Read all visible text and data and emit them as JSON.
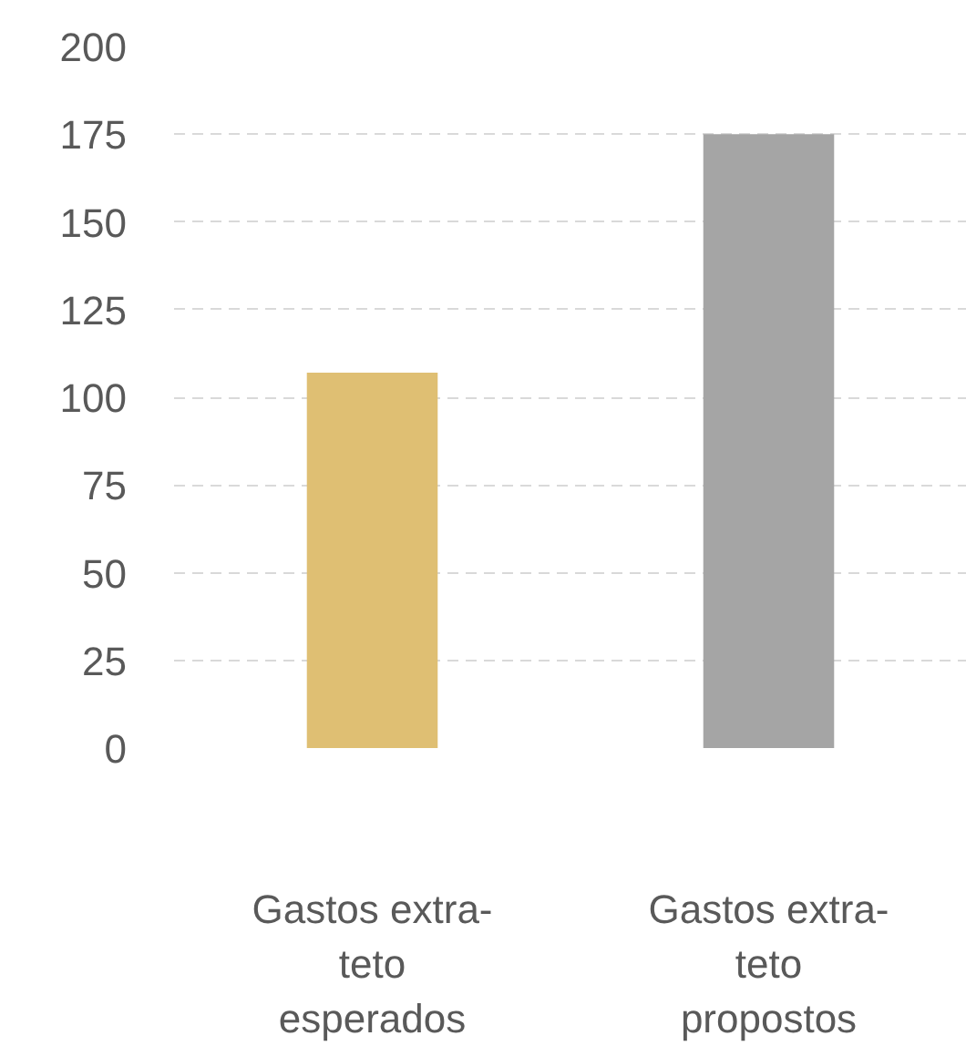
{
  "chart_data": {
    "type": "bar",
    "categories": [
      "Gastos extra-teto esperados",
      "Gastos extra-teto propostos"
    ],
    "values": [
      107,
      175
    ],
    "colors": [
      "#dfbf73",
      "#a5a5a5"
    ],
    "ylim": [
      0,
      200
    ],
    "yticks": [
      0,
      25,
      50,
      75,
      100,
      125,
      150,
      175,
      200
    ],
    "grid": "y"
  }
}
